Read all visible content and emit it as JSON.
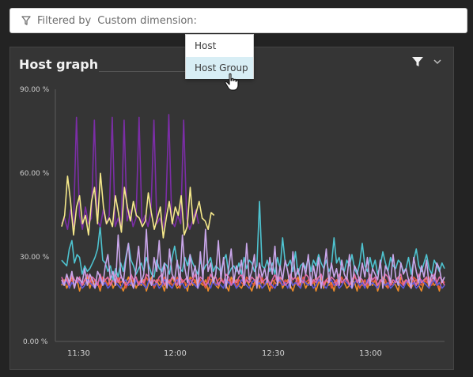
{
  "filter_bar": {
    "label": "Filtered by",
    "dimension_text": "Custom dimension:",
    "icon": "filter-icon"
  },
  "dropdown": {
    "items": [
      {
        "label": "Host",
        "hovered": false
      },
      {
        "label": "Host Group",
        "hovered": true
      }
    ]
  },
  "tile": {
    "title": "Host graph",
    "filter_icon": "filter-icon",
    "menu_icon": "chevron-down-icon"
  },
  "colors": {
    "background": "#232323",
    "tile_background": "#353535",
    "dropdown_hover": "#d8eef5",
    "series": [
      "#7b2ea6",
      "#f5e88a",
      "#4ec3d0",
      "#c9a6ea",
      "#e0563a",
      "#f08c2a",
      "#5a5ad8",
      "#e06aa8"
    ]
  },
  "chart_data": {
    "type": "line",
    "y_ticks": [
      "90.00 %",
      "60.00 %",
      "30.00 %",
      "0.00 %"
    ],
    "x_ticks": [
      "11:30",
      "12:00",
      "12:30",
      "13:00"
    ],
    "ylim": [
      0,
      90
    ],
    "y_unit": "%",
    "x_range": [
      "11:20",
      "13:25"
    ],
    "grid": false,
    "series": [
      {
        "color": "#7b2ea6",
        "x_start": "11:22",
        "x_end": "12:06",
        "values": [
          42,
          44,
          40,
          47,
          41,
          80,
          45,
          40,
          48,
          42,
          44,
          79,
          43,
          41,
          47,
          42,
          45,
          80,
          41,
          44,
          40,
          79,
          43,
          47,
          41,
          44,
          80,
          42,
          45,
          41,
          46,
          79,
          42,
          44,
          40,
          47,
          81,
          43,
          41,
          45,
          42,
          79,
          44,
          40,
          43,
          47,
          42
        ]
      },
      {
        "color": "#f5e88a",
        "x_start": "11:22",
        "x_end": "12:11",
        "values": [
          41,
          45,
          59,
          50,
          38,
          48,
          52,
          42,
          45,
          38,
          50,
          55,
          42,
          60,
          48,
          42,
          44,
          41,
          52,
          46,
          39,
          55,
          48,
          43,
          50,
          45,
          44,
          41,
          43,
          53,
          46,
          40,
          44,
          48,
          37,
          44,
          50,
          42,
          48,
          45,
          52,
          38,
          41,
          55,
          42,
          46,
          50,
          44,
          43,
          40,
          46,
          45
        ]
      },
      {
        "color": "#4ec3d0",
        "x_start": "11:22",
        "x_end": "13:25",
        "values": [
          29,
          28,
          27,
          33,
          36,
          28,
          31,
          30,
          24,
          27,
          25,
          26,
          28,
          30,
          33,
          41,
          29,
          28,
          25,
          27,
          22,
          26,
          23,
          28,
          25,
          30,
          35,
          29,
          27,
          24,
          26,
          28,
          25,
          30,
          27,
          24,
          23,
          29,
          26,
          25,
          28,
          27,
          24,
          30,
          34,
          28,
          26,
          25,
          30,
          27,
          31,
          28,
          26,
          24,
          29,
          25,
          27,
          28,
          30,
          25,
          27,
          26,
          25,
          29,
          31,
          24,
          26,
          27,
          25,
          28,
          24,
          30,
          26,
          29,
          28,
          25,
          27,
          50,
          27,
          26,
          29,
          25,
          28,
          24,
          30,
          26,
          37,
          28,
          27,
          29,
          25,
          32,
          24,
          27,
          28,
          26,
          30,
          25,
          29,
          27,
          31,
          28,
          26,
          29,
          25,
          27,
          37,
          28,
          30,
          26,
          25,
          29,
          27,
          31,
          26,
          24,
          28,
          35,
          27,
          25,
          30,
          26,
          29,
          24,
          27,
          32,
          28,
          25,
          30,
          27,
          26,
          29,
          28,
          25,
          26,
          30,
          24,
          29,
          33,
          27,
          25,
          28,
          31,
          26,
          24,
          29,
          27,
          25,
          28,
          26
        ]
      },
      {
        "color": "#c9a6ea",
        "x_start": "11:22",
        "x_end": "13:25",
        "values": [
          22,
          20,
          24,
          21,
          25,
          19,
          23,
          22,
          21,
          26,
          20,
          24,
          22,
          19,
          25,
          23,
          20,
          27,
          31,
          22,
          25,
          20,
          38,
          24,
          21,
          29,
          35,
          22,
          19,
          26,
          34,
          21,
          24,
          40,
          22,
          20,
          30,
          25,
          36,
          21,
          28,
          19,
          33,
          24,
          22,
          29,
          20,
          38,
          26,
          21,
          31,
          23,
          27,
          19,
          32,
          22,
          40,
          25,
          28,
          21,
          24,
          36,
          22,
          30,
          19,
          26,
          33,
          21,
          27,
          24,
          29,
          20,
          35,
          22,
          25,
          31,
          19,
          28,
          23,
          26,
          21,
          30,
          24,
          34,
          20,
          27,
          22,
          29,
          25,
          19,
          32,
          23,
          26,
          21,
          28,
          24,
          31,
          20,
          27,
          22,
          30,
          19,
          25,
          33,
          21,
          28,
          23,
          26,
          20,
          29,
          24,
          22,
          31,
          19,
          27,
          25,
          21,
          28,
          23,
          30,
          20,
          26,
          24,
          22,
          29,
          19,
          27,
          25,
          21,
          31,
          23,
          20,
          28,
          24,
          26,
          22,
          19,
          30,
          25,
          21,
          27,
          23,
          29,
          20,
          24,
          22,
          28,
          26,
          21,
          23
        ]
      },
      {
        "color": "#e0563a",
        "x_start": "11:22",
        "x_end": "13:25",
        "values": [
          22,
          20,
          23,
          21,
          22,
          19,
          23,
          21,
          20,
          22,
          21,
          23,
          20,
          22,
          21,
          19,
          23,
          22,
          20,
          21,
          22,
          20,
          23,
          21,
          22,
          19,
          21,
          23,
          20,
          22,
          21,
          22,
          20,
          23,
          21,
          22,
          19,
          21,
          22,
          20,
          23,
          21,
          22,
          20,
          21,
          23,
          19,
          22,
          21,
          20,
          22,
          23,
          21,
          20,
          22,
          21,
          19,
          23,
          22,
          21,
          20,
          22,
          23,
          21,
          20,
          22,
          21,
          23,
          19,
          22,
          21,
          20,
          23,
          22,
          21,
          20,
          22,
          21,
          23,
          20,
          22,
          21,
          19,
          22,
          23,
          21,
          20,
          22,
          21,
          23,
          20,
          21,
          22,
          19,
          23,
          21,
          22,
          20,
          21,
          23,
          22,
          20,
          21,
          22,
          23,
          19,
          21,
          22,
          20,
          23,
          21,
          22,
          20,
          21,
          23,
          22,
          19,
          21,
          22,
          20,
          23,
          21,
          22,
          20,
          21,
          23,
          22,
          19,
          21,
          20,
          22,
          23,
          21,
          20,
          22,
          21,
          19,
          23,
          22,
          21,
          20,
          22,
          21,
          23,
          20,
          22,
          21,
          19,
          22,
          21
        ]
      },
      {
        "color": "#f08c2a",
        "x_start": "11:22",
        "x_end": "13:25",
        "values": [
          20,
          22,
          19,
          21,
          23,
          20,
          22,
          18,
          21,
          20,
          23,
          19,
          22,
          20,
          21,
          18,
          22,
          21,
          20,
          23,
          19,
          21,
          22,
          20,
          18,
          21,
          23,
          20,
          22,
          19,
          21,
          20,
          22,
          18,
          21,
          23,
          19,
          22,
          20,
          21,
          18,
          22,
          20,
          23,
          21,
          19,
          20,
          22,
          21,
          18,
          23,
          20,
          22,
          19,
          21,
          20,
          22,
          18,
          21,
          23,
          20,
          19,
          22,
          21,
          20,
          18,
          23,
          21,
          22,
          20,
          19,
          21,
          22,
          20,
          18,
          21,
          23,
          19,
          22,
          20,
          21,
          18,
          22,
          21,
          20,
          23,
          19,
          21,
          22,
          20,
          18,
          21,
          23,
          20,
          22,
          19,
          21,
          20,
          22,
          18,
          21,
          23,
          19,
          22,
          20,
          21,
          18,
          22,
          20,
          23,
          21,
          19,
          20,
          22,
          21,
          18,
          23,
          20,
          22,
          19,
          21,
          20,
          22,
          18,
          21,
          23,
          20,
          19,
          22,
          21,
          20,
          18,
          23,
          21,
          22,
          20,
          19,
          21,
          22,
          20,
          18,
          21,
          23,
          19,
          22,
          20,
          21,
          18,
          22,
          21
        ]
      },
      {
        "color": "#5a5ad8",
        "x_start": "11:22",
        "x_end": "13:25",
        "values": [
          21,
          20,
          22,
          19,
          21,
          20,
          22,
          21,
          19,
          20,
          22,
          21,
          20,
          19,
          21,
          22,
          20,
          21,
          19,
          20,
          22,
          21,
          20,
          19,
          21,
          22,
          20,
          21,
          19,
          22,
          20,
          21,
          20,
          19,
          22,
          21,
          20,
          21,
          19,
          20,
          22,
          21,
          20,
          19,
          21,
          22,
          20,
          21,
          19,
          20,
          22,
          21,
          20,
          19,
          21,
          22,
          20,
          21,
          19,
          22,
          20,
          21,
          20,
          19,
          22,
          21,
          20,
          21,
          19,
          20,
          22,
          21,
          20,
          19,
          21,
          22,
          20,
          21,
          19,
          20,
          22,
          21,
          20,
          19,
          21,
          22,
          20,
          21,
          19,
          22,
          20,
          21,
          20,
          19,
          22,
          21,
          20,
          21,
          19,
          20,
          22,
          21,
          20,
          19,
          21,
          22,
          20,
          21,
          19,
          20,
          22,
          21,
          20,
          19,
          21,
          22,
          20,
          21,
          19,
          22,
          20,
          21,
          20,
          19,
          22,
          21,
          20,
          21,
          19,
          20,
          22,
          21,
          20,
          19,
          21,
          22,
          20,
          21,
          19,
          20,
          22,
          21,
          20,
          19,
          21,
          22,
          20,
          21,
          19,
          20
        ]
      },
      {
        "color": "#e06aa8",
        "x_start": "11:22",
        "x_end": "13:25",
        "values": [
          23,
          21,
          22,
          20,
          24,
          22,
          21,
          23,
          20,
          22,
          24,
          21,
          23,
          22,
          20,
          24,
          21,
          22,
          23,
          20,
          22,
          24,
          21,
          23,
          22,
          20,
          21,
          24,
          22,
          23,
          20,
          22,
          21,
          24,
          23,
          20,
          22,
          21,
          23,
          24,
          20,
          22,
          21,
          23,
          22,
          20,
          24,
          21,
          22,
          23,
          20,
          22,
          24,
          21,
          23,
          22,
          20,
          21,
          24,
          22,
          23,
          20,
          22,
          21,
          24,
          23,
          20,
          22,
          21,
          23,
          24,
          20,
          22,
          21,
          23,
          22,
          20,
          24,
          21,
          22,
          23,
          20,
          22,
          24,
          21,
          23,
          22,
          20,
          21,
          24,
          22,
          23,
          20,
          22,
          21,
          24,
          23,
          20,
          22,
          21,
          23,
          24,
          20,
          22,
          21,
          23,
          22,
          20,
          24,
          21,
          22,
          23,
          20,
          22,
          24,
          21,
          23,
          22,
          20,
          21,
          24,
          22,
          23,
          20,
          22,
          21,
          24,
          23,
          20,
          22,
          21,
          23,
          24,
          20,
          22,
          21,
          23,
          22,
          20,
          24,
          21,
          22,
          23,
          20,
          22,
          24,
          21,
          23,
          22,
          20
        ]
      }
    ]
  }
}
